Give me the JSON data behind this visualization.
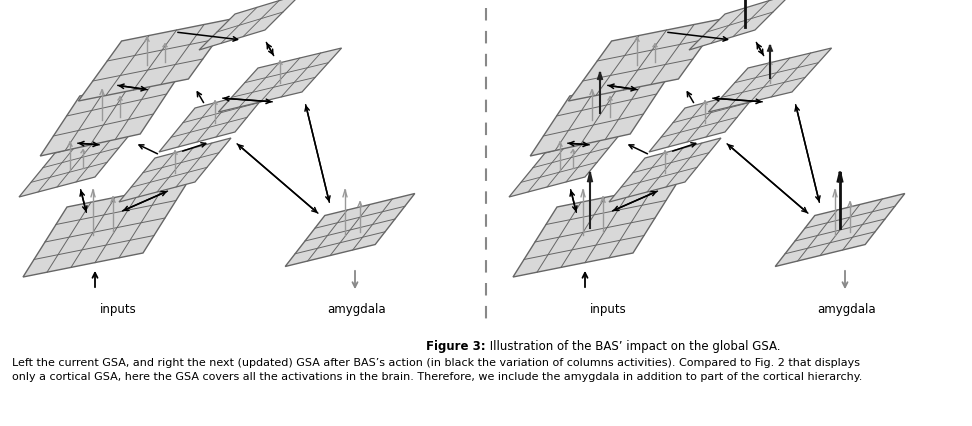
{
  "figure_title_bold": "Figure 3:",
  "figure_title_rest": " Illustration of the BAS’ impact on the global GSA.",
  "caption_line1": "Left the current GSA, and right the next (updated) GSA after BAS’s action (in black the variation of columns activities). Compared to Fig. 2 that displays",
  "caption_line2": "only a cortical GSA, here the GSA covers all the activations in the brain. Therefore, we include the amygdala in addition to part of the cortical hierarchy.",
  "background_color": "#ffffff",
  "grid_color": "#666666",
  "arrow_color": "#000000",
  "fill_color": "#d8d8d8"
}
